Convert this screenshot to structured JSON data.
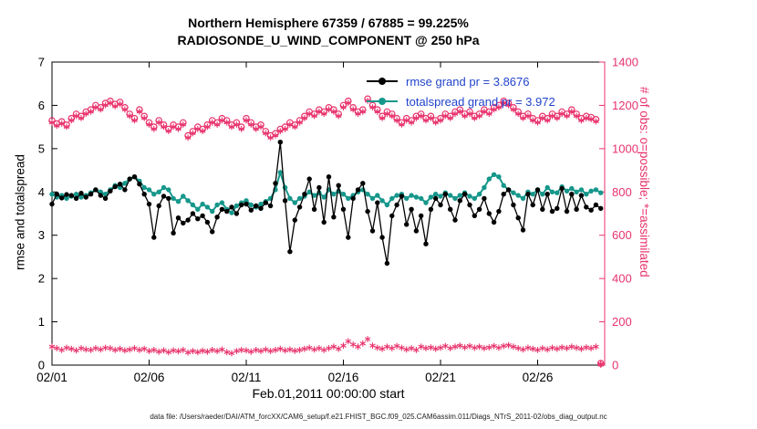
{
  "caption": "data file: /Users/raeder/DAI/ATM_forcXX/CAM6_setup/f.e21.FHIST_BGC.f09_025.CAM6assim.011/Diags_NTrS_2011-02/obs_diag_output.nc",
  "chart_data": {
    "type": "line",
    "title_line1": "Northern Hemisphere 67359 / 67885 = 99.225%",
    "title_line2": "RADIOSONDE_U_WIND_COMPONENT @ 250 hPa",
    "xlabel": "Feb.01,2011 00:00:00 start",
    "ylabel_left": "rmse and totalspread",
    "ylabel_right": "# of obs: o=possible; *=assimilated",
    "x_range": [
      0,
      28.45
    ],
    "x_start": 0,
    "x_step": 0.25,
    "y_left_range": [
      0,
      7
    ],
    "y_right_range": [
      0,
      1400
    ],
    "y_left_ticks": [
      0,
      1,
      2,
      3,
      4,
      5,
      6,
      7
    ],
    "y_right_ticks": [
      0,
      200,
      400,
      600,
      800,
      1000,
      1200,
      1400
    ],
    "x_ticks": {
      "labels": [
        "02/01",
        "02/06",
        "02/11",
        "02/16",
        "02/21",
        "02/26"
      ],
      "positions": [
        0,
        5,
        10,
        15,
        20,
        25
      ]
    },
    "colors": {
      "rmse": "#000000",
      "totalspread": "#16978b",
      "obs": "#e8336d",
      "legend_text": "#2244cc"
    },
    "legend": [
      {
        "name": "rmse",
        "label": "rmse grand pr = 3.8676",
        "color": "#000000"
      },
      {
        "name": "totalspread",
        "label": "totalspread grand pr = 3.972",
        "color": "#16978b"
      }
    ],
    "series": [
      {
        "name": "totalspread",
        "axis": "left",
        "marker": "dot",
        "line": true,
        "line_width": 2,
        "color": "#16978b",
        "values": [
          3.95,
          3.88,
          3.92,
          3.85,
          3.9,
          3.95,
          3.88,
          3.92,
          3.98,
          4.05,
          4.0,
          3.95,
          4.05,
          4.15,
          4.1,
          4.2,
          4.3,
          4.35,
          4.25,
          4.1,
          4.05,
          3.95,
          4.0,
          4.1,
          4.05,
          3.85,
          3.78,
          3.9,
          3.8,
          3.7,
          3.6,
          3.72,
          3.65,
          3.55,
          3.7,
          3.75,
          3.6,
          3.52,
          3.68,
          3.75,
          3.8,
          3.7,
          3.65,
          3.72,
          3.78,
          3.85,
          4.05,
          4.45,
          4.1,
          3.85,
          3.75,
          3.85,
          3.9,
          4.0,
          3.92,
          3.98,
          3.88,
          4.05,
          3.95,
          4.02,
          3.95,
          3.85,
          3.92,
          4.0,
          4.05,
          3.95,
          3.85,
          3.92,
          3.8,
          3.7,
          3.85,
          3.92,
          3.95,
          3.85,
          3.92,
          3.88,
          3.85,
          3.75,
          3.88,
          3.95,
          3.9,
          3.98,
          3.92,
          3.85,
          3.92,
          3.98,
          3.9,
          3.85,
          3.95,
          4.1,
          4.3,
          4.4,
          4.35,
          4.15,
          4.05,
          3.98,
          3.92,
          3.85,
          4.0,
          3.95,
          4.05,
          3.95,
          4.1,
          4.0,
          3.98,
          4.12,
          4.02,
          4.08,
          4.0,
          4.05,
          3.95,
          4.02,
          4.05,
          3.98
        ]
      },
      {
        "name": "rmse",
        "axis": "left",
        "marker": "dot",
        "line": true,
        "line_width": 1.3,
        "color": "#000000",
        "values": [
          3.72,
          3.95,
          3.86,
          3.94,
          3.92,
          3.85,
          3.97,
          3.88,
          3.95,
          4.05,
          3.92,
          3.85,
          4.02,
          4.12,
          4.18,
          4.05,
          4.3,
          4.35,
          4.18,
          3.95,
          3.72,
          2.95,
          3.68,
          3.9,
          3.85,
          3.05,
          3.4,
          3.28,
          3.35,
          3.5,
          3.38,
          3.45,
          3.3,
          3.08,
          3.42,
          3.6,
          3.55,
          3.65,
          3.5,
          3.7,
          3.72,
          3.58,
          3.68,
          3.62,
          3.75,
          3.68,
          4.2,
          5.15,
          3.8,
          2.62,
          3.35,
          3.65,
          3.95,
          4.3,
          3.6,
          4.1,
          3.3,
          4.35,
          3.42,
          4.15,
          3.6,
          2.95,
          3.85,
          4.05,
          4.2,
          3.55,
          3.1,
          3.75,
          2.95,
          2.35,
          3.45,
          3.7,
          3.9,
          3.25,
          3.6,
          3.1,
          3.45,
          2.8,
          3.6,
          3.85,
          3.7,
          3.95,
          3.6,
          3.35,
          3.8,
          3.95,
          3.7,
          3.45,
          3.6,
          3.85,
          3.5,
          3.3,
          3.55,
          3.95,
          4.05,
          3.7,
          3.4,
          3.12,
          3.95,
          3.7,
          4.05,
          3.6,
          3.95,
          3.55,
          3.62,
          4.08,
          3.55,
          3.95,
          3.6,
          3.92,
          3.65,
          3.58,
          3.7,
          3.62
        ]
      },
      {
        "name": "obs-possible",
        "axis": "right",
        "marker": "circle",
        "line": false,
        "color": "#e8336d",
        "values": [
          1130,
          1115,
          1125,
          1110,
          1140,
          1160,
          1150,
          1170,
          1180,
          1200,
          1190,
          1210,
          1220,
          1205,
          1215,
          1190,
          1160,
          1140,
          1180,
          1150,
          1120,
          1100,
          1130,
          1110,
          1090,
          1110,
          1100,
          1120,
          1060,
          1080,
          1100,
          1090,
          1110,
          1130,
          1120,
          1140,
          1130,
          1110,
          1120,
          1100,
          1140,
          1120,
          1100,
          1110,
          1080,
          1060,
          1070,
          1090,
          1100,
          1120,
          1110,
          1130,
          1150,
          1170,
          1160,
          1180,
          1170,
          1190,
          1180,
          1160,
          1200,
          1220,
          1190,
          1170,
          1180,
          1230,
          1200,
          1180,
          1150,
          1170,
          1160,
          1140,
          1120,
          1140,
          1130,
          1150,
          1160,
          1140,
          1150,
          1130,
          1140,
          1160,
          1150,
          1170,
          1180,
          1160,
          1170,
          1150,
          1160,
          1180,
          1170,
          1190,
          1200,
          1220,
          1210,
          1190,
          1170,
          1150,
          1160,
          1140,
          1130,
          1150,
          1140,
          1160,
          1150,
          1170,
          1160,
          1180,
          1160,
          1140,
          1150,
          1145,
          1135,
          8
        ]
      },
      {
        "name": "obs-assimilated",
        "axis": "right",
        "marker": "asterisk",
        "line": false,
        "color": "#e8336d",
        "values": [
          1121,
          1106,
          1116,
          1101,
          1131,
          1151,
          1141,
          1161,
          1171,
          1191,
          1181,
          1201,
          1211,
          1196,
          1206,
          1181,
          1151,
          1131,
          1171,
          1141,
          1111,
          1091,
          1121,
          1101,
          1081,
          1101,
          1091,
          1111,
          1051,
          1071,
          1091,
          1081,
          1101,
          1121,
          1111,
          1131,
          1121,
          1101,
          1111,
          1091,
          1131,
          1111,
          1091,
          1101,
          1071,
          1051,
          1061,
          1081,
          1091,
          1111,
          1101,
          1121,
          1141,
          1161,
          1151,
          1171,
          1161,
          1181,
          1171,
          1151,
          1191,
          1211,
          1181,
          1161,
          1171,
          1221,
          1191,
          1171,
          1141,
          1161,
          1151,
          1131,
          1111,
          1131,
          1121,
          1141,
          1151,
          1131,
          1141,
          1121,
          1131,
          1151,
          1141,
          1161,
          1171,
          1151,
          1161,
          1141,
          1151,
          1171,
          1161,
          1181,
          1191,
          1211,
          1201,
          1181,
          1161,
          1141,
          1151,
          1131,
          1121,
          1141,
          1131,
          1151,
          1141,
          1161,
          1151,
          1171,
          1151,
          1131,
          1141,
          1136,
          1126,
          5
        ]
      },
      {
        "name": "obs-count-lower-band",
        "axis": "right",
        "marker": "asterisk",
        "line": false,
        "color": "#e8336d",
        "values": [
          85,
          78,
          70,
          80,
          75,
          68,
          78,
          72,
          70,
          78,
          72,
          80,
          78,
          70,
          75,
          68,
          72,
          78,
          70,
          75,
          65,
          70,
          62,
          68,
          60,
          68,
          64,
          70,
          58,
          65,
          60,
          66,
          62,
          70,
          65,
          72,
          60,
          55,
          65,
          70,
          68,
          62,
          70,
          65,
          72,
          65,
          70,
          75,
          68,
          72,
          66,
          70,
          75,
          80,
          72,
          78,
          70,
          78,
          85,
          75,
          90,
          110,
          95,
          85,
          100,
          120,
          90,
          80,
          75,
          85,
          78,
          88,
          80,
          72,
          78,
          70,
          85,
          78,
          82,
          75,
          80,
          88,
          78,
          85,
          90,
          82,
          88,
          80,
          85,
          78,
          82,
          88,
          80,
          88,
          92,
          85,
          78,
          72,
          80,
          75,
          70,
          78,
          72,
          80,
          75,
          82,
          78,
          85,
          80,
          75,
          82,
          78,
          85,
          2
        ]
      }
    ]
  }
}
